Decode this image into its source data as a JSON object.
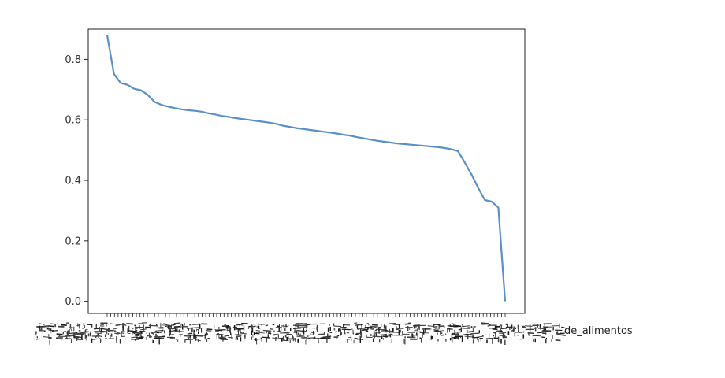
{
  "chart_data": {
    "type": "line",
    "title": "",
    "xlabel": "",
    "ylabel": "",
    "ylim": [
      -0.04,
      0.9
    ],
    "y_ticks": [
      "0.0",
      "0.2",
      "0.4",
      "0.6",
      "0.8"
    ],
    "grid": false,
    "legend": "none",
    "line_color": "#5b8fc9",
    "x_tick_labels_readable": [
      "de_alimentos"
    ],
    "series": [
      {
        "values": [
          0.88,
          0.752,
          0.722,
          0.716,
          0.703,
          0.698,
          0.683,
          0.66,
          0.65,
          0.644,
          0.639,
          0.635,
          0.632,
          0.63,
          0.627,
          0.622,
          0.618,
          0.613,
          0.61,
          0.606,
          0.603,
          0.6,
          0.597,
          0.594,
          0.591,
          0.587,
          0.581,
          0.577,
          0.573,
          0.57,
          0.567,
          0.564,
          0.561,
          0.558,
          0.555,
          0.551,
          0.548,
          0.543,
          0.539,
          0.535,
          0.531,
          0.528,
          0.525,
          0.522,
          0.52,
          0.518,
          0.516,
          0.514,
          0.512,
          0.51,
          0.507,
          0.503,
          0.497,
          0.46,
          0.42,
          0.375,
          0.335,
          0.33,
          0.31,
          0.0
        ]
      }
    ]
  }
}
